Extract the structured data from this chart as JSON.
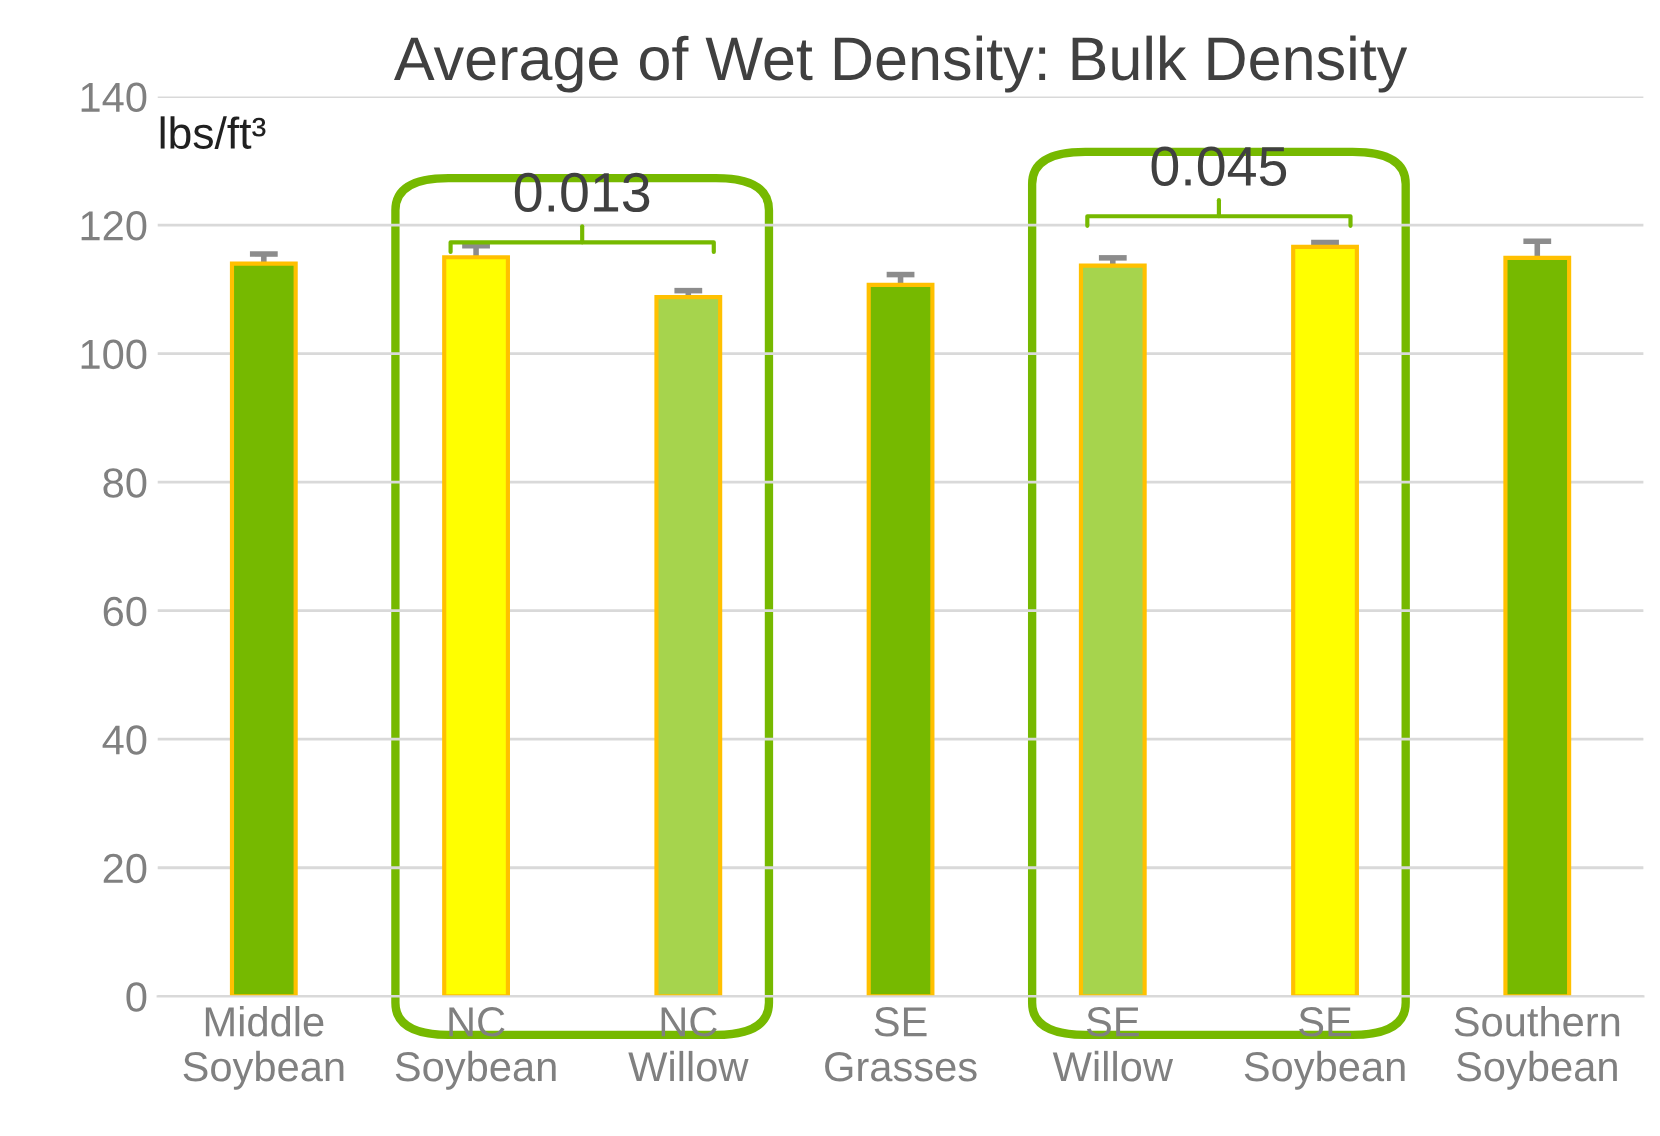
{
  "chart_data": {
    "type": "bar",
    "title": "Average of Wet Density: Bulk Density",
    "ylabel": "lbs/ft³",
    "categories": [
      "Middle Soybean",
      "NC Soybean",
      "NC Willow",
      "SE Grasses",
      "SE Willow",
      "SE Soybean",
      "Southern Soybean"
    ],
    "values": [
      114.0,
      115.0,
      108.8,
      110.7,
      113.7,
      116.6,
      114.9
    ],
    "errors": [
      1.5,
      1.8,
      1.0,
      1.6,
      1.2,
      0.7,
      2.6
    ],
    "colors": [
      "#76b900",
      "#ffff00",
      "#a6d44d",
      "#76b900",
      "#a6d44d",
      "#ffff00",
      "#76b900"
    ],
    "ylim": [
      0,
      140
    ],
    "yticks": [
      0,
      20,
      40,
      60,
      80,
      100,
      120,
      140
    ],
    "grid": "y",
    "annotations": [
      "0.013",
      "0.045"
    ]
  }
}
